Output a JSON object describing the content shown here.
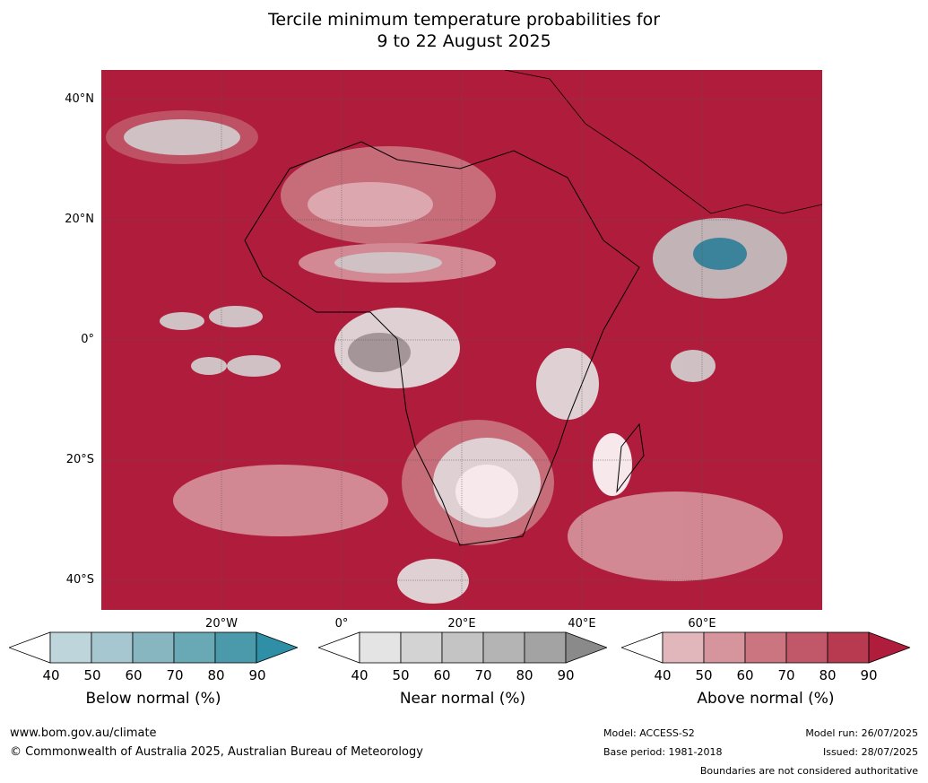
{
  "title_line1": "Tercile minimum temperature probabilities for",
  "title_line2": "9 to 22 August 2025",
  "lat_labels": [
    "40°N",
    "20°N",
    "0°",
    "20°S",
    "40°S"
  ],
  "lon_labels": [
    "20°W",
    "0°",
    "20°E",
    "40°E",
    "60°E"
  ],
  "colorbars": [
    {
      "label": "Below normal (%)",
      "ticks": [
        "40",
        "50",
        "60",
        "70",
        "80",
        "90"
      ],
      "colors": [
        "#bfd5dc",
        "#a6c7cf",
        "#87b5c0",
        "#69a8b5",
        "#4a9aac",
        "#2e8fa6"
      ]
    },
    {
      "label": "Near normal (%)",
      "ticks": [
        "40",
        "50",
        "60",
        "70",
        "80",
        "90"
      ],
      "colors": [
        "#e4e4e4",
        "#d3d3d3",
        "#c4c4c4",
        "#b4b4b4",
        "#a3a3a3",
        "#8a8a8a"
      ]
    },
    {
      "label": "Above normal (%)",
      "ticks": [
        "40",
        "50",
        "60",
        "70",
        "80",
        "90"
      ],
      "colors": [
        "#e2b7bc",
        "#d6959d",
        "#ca7580",
        "#c05869",
        "#b83a51",
        "#b01c3b"
      ]
    }
  ],
  "footer": {
    "website": "www.bom.gov.au/climate",
    "copyright": "© Commonwealth of Australia 2025, Australian Bureau of Meteorology",
    "model": "Model: ACCESS-S2",
    "base_period": "Base period: 1981-2018",
    "model_run": "Model run: 26/07/2025",
    "issued": "Issued: 28/07/2025",
    "boundaries": "Boundaries are not considered authoritative"
  }
}
